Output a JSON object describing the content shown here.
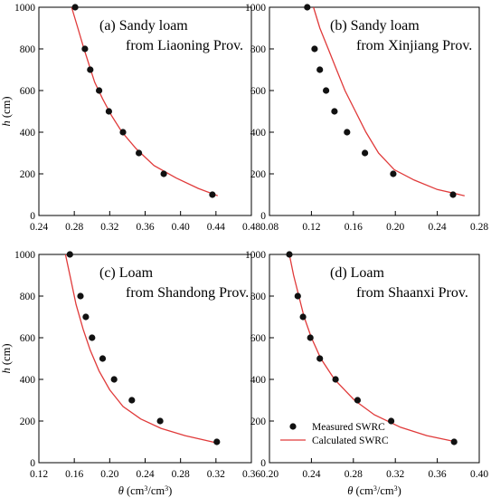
{
  "chart_data": [
    {
      "type": "scatter",
      "panel": "a",
      "annotation_lines": [
        "(a)  Sandy loam",
        "from Liaoning Prov."
      ],
      "xlabel": "",
      "ylabel": "h (cm)",
      "xlim": [
        0.24,
        0.48
      ],
      "ylim": [
        0,
        1000
      ],
      "xticks": [
        "0.24",
        "0.28",
        "0.32",
        "0.36",
        "0.40",
        "0.44",
        "0.48"
      ],
      "yticks": [
        "0",
        "200",
        "400",
        "600",
        "800",
        "1000"
      ],
      "series": [
        {
          "name": "Measured SWRC",
          "kind": "points",
          "points": [
            [
              0.281,
              1000
            ],
            [
              0.292,
              800
            ],
            [
              0.298,
              700
            ],
            [
              0.308,
              600
            ],
            [
              0.319,
              500
            ],
            [
              0.335,
              400
            ],
            [
              0.353,
              300
            ],
            [
              0.381,
              200
            ],
            [
              0.436,
              100
            ]
          ]
        },
        {
          "name": "Calculated SWRC",
          "kind": "line",
          "points": [
            [
              0.277,
              1000
            ],
            [
              0.284,
              900
            ],
            [
              0.291,
              800
            ],
            [
              0.297,
              720
            ],
            [
              0.303,
              640
            ],
            [
              0.312,
              560
            ],
            [
              0.322,
              480
            ],
            [
              0.334,
              400
            ],
            [
              0.35,
              320
            ],
            [
              0.37,
              240
            ],
            [
              0.395,
              180
            ],
            [
              0.42,
              130
            ],
            [
              0.442,
              95
            ]
          ]
        }
      ]
    },
    {
      "type": "scatter",
      "panel": "b",
      "annotation_lines": [
        "(b)  Sandy loam",
        "from Xinjiang Prov."
      ],
      "xlabel": "",
      "ylabel": "",
      "xlim": [
        0.08,
        0.28
      ],
      "ylim": [
        0,
        1000
      ],
      "xticks": [
        "0.08",
        "0.12",
        "0.16",
        "0.20",
        "0.24",
        "0.28"
      ],
      "yticks": [
        "0",
        "200",
        "400",
        "600",
        "800",
        "1000"
      ],
      "series": [
        {
          "name": "Measured SWRC",
          "kind": "points",
          "points": [
            [
              0.116,
              1000
            ],
            [
              0.123,
              800
            ],
            [
              0.128,
              700
            ],
            [
              0.134,
              600
            ],
            [
              0.142,
              500
            ],
            [
              0.154,
              400
            ],
            [
              0.171,
              300
            ],
            [
              0.198,
              200
            ],
            [
              0.255,
              100
            ]
          ]
        },
        {
          "name": "Calculated SWRC",
          "kind": "line",
          "points": [
            [
              0.122,
              1000
            ],
            [
              0.128,
              900
            ],
            [
              0.136,
              800
            ],
            [
              0.144,
              700
            ],
            [
              0.152,
              600
            ],
            [
              0.162,
              500
            ],
            [
              0.172,
              400
            ],
            [
              0.184,
              300
            ],
            [
              0.199,
              220
            ],
            [
              0.218,
              170
            ],
            [
              0.24,
              125
            ],
            [
              0.266,
              95
            ]
          ]
        }
      ]
    },
    {
      "type": "scatter",
      "panel": "c",
      "annotation_lines": [
        "(c)  Loam",
        "from Shandong Prov."
      ],
      "xlabel": "θ (cm3/cm3)",
      "ylabel": "h (cm)",
      "xlim": [
        0.12,
        0.36
      ],
      "ylim": [
        0,
        1000
      ],
      "xticks": [
        "0.12",
        "0.16",
        "0.20",
        "0.24",
        "0.28",
        "0.32",
        "0.36"
      ],
      "yticks": [
        "0",
        "200",
        "400",
        "600",
        "800",
        "1000"
      ],
      "series": [
        {
          "name": "Measured SWRC",
          "kind": "points",
          "points": [
            [
              0.155,
              1000
            ],
            [
              0.167,
              800
            ],
            [
              0.173,
              700
            ],
            [
              0.18,
              600
            ],
            [
              0.192,
              500
            ],
            [
              0.205,
              400
            ],
            [
              0.225,
              300
            ],
            [
              0.257,
              200
            ],
            [
              0.321,
              100
            ]
          ]
        },
        {
          "name": "Calculated SWRC",
          "kind": "line",
          "points": [
            [
              0.15,
              1000
            ],
            [
              0.156,
              880
            ],
            [
              0.162,
              760
            ],
            [
              0.17,
              640
            ],
            [
              0.178,
              540
            ],
            [
              0.188,
              440
            ],
            [
              0.2,
              350
            ],
            [
              0.215,
              270
            ],
            [
              0.235,
              210
            ],
            [
              0.258,
              165
            ],
            [
              0.285,
              130
            ],
            [
              0.318,
              98
            ]
          ]
        }
      ]
    },
    {
      "type": "scatter",
      "panel": "d",
      "annotation_lines": [
        "(d)  Loam",
        "from Shaanxi Prov."
      ],
      "xlabel": "θ (cm3/cm3)",
      "ylabel": "",
      "xlim": [
        0.2,
        0.4
      ],
      "ylim": [
        0,
        1000
      ],
      "xticks": [
        "0.20",
        "0.24",
        "0.28",
        "0.32",
        "0.36",
        "0.40"
      ],
      "yticks": [
        "0",
        "200",
        "400",
        "600",
        "800",
        "1000"
      ],
      "legend": {
        "position": "bottom-left",
        "entries": [
          "Measured SWRC",
          "Calculated SWRC"
        ]
      },
      "series": [
        {
          "name": "Measured SWRC",
          "kind": "points",
          "points": [
            [
              0.219,
              1000
            ],
            [
              0.227,
              800
            ],
            [
              0.232,
              700
            ],
            [
              0.239,
              600
            ],
            [
              0.248,
              500
            ],
            [
              0.263,
              400
            ],
            [
              0.284,
              300
            ],
            [
              0.316,
              200
            ],
            [
              0.376,
              100
            ]
          ]
        },
        {
          "name": "Calculated SWRC",
          "kind": "line",
          "points": [
            [
              0.219,
              1000
            ],
            [
              0.223,
              900
            ],
            [
              0.228,
              800
            ],
            [
              0.233,
              700
            ],
            [
              0.24,
              600
            ],
            [
              0.249,
              500
            ],
            [
              0.262,
              400
            ],
            [
              0.281,
              300
            ],
            [
              0.3,
              230
            ],
            [
              0.325,
              170
            ],
            [
              0.35,
              130
            ],
            [
              0.378,
              100
            ]
          ]
        }
      ]
    }
  ]
}
